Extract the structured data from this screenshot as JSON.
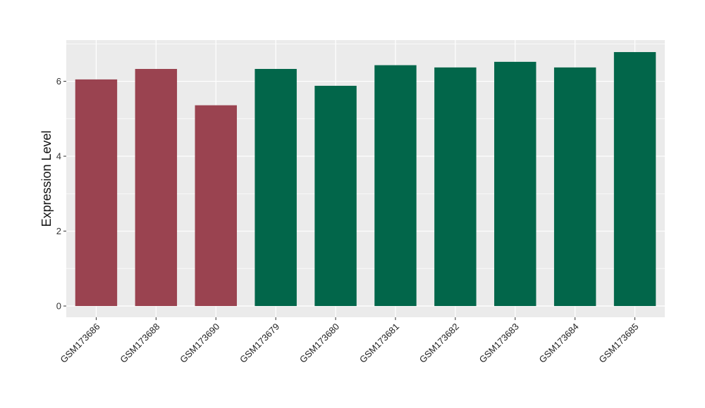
{
  "chart_data": {
    "type": "bar",
    "title": "",
    "xlabel": "",
    "ylabel": "Expression Level",
    "categories": [
      "GSM173686",
      "GSM173688",
      "GSM173690",
      "GSM173679",
      "GSM173680",
      "GSM173681",
      "GSM173682",
      "GSM173683",
      "GSM173684",
      "GSM173685"
    ],
    "values": [
      6.05,
      6.33,
      5.36,
      6.33,
      5.88,
      6.43,
      6.37,
      6.52,
      6.37,
      6.78
    ],
    "bar_colors": [
      "#9a4350",
      "#9a4350",
      "#9a4350",
      "#02664a",
      "#02664a",
      "#02664a",
      "#02664a",
      "#02664a",
      "#02664a",
      "#02664a"
    ],
    "ylim": [
      -0.3,
      7.1
    ],
    "yticks": [
      0,
      2,
      4,
      6
    ],
    "grid": true,
    "legend": "none",
    "panel_background": "#ebebeb",
    "grid_color": "#ffffff"
  }
}
